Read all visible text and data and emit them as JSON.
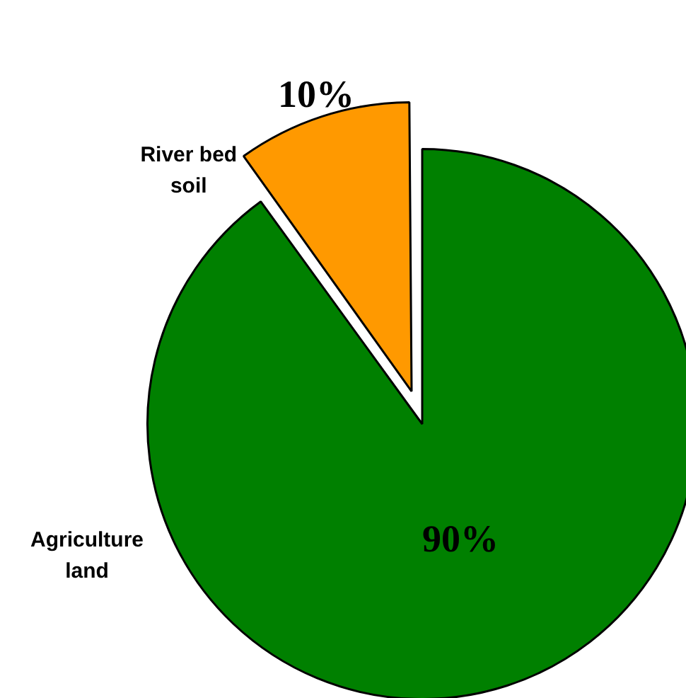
{
  "chart_data": {
    "type": "pie",
    "categories": [
      "Agriculture land",
      "River bed soil"
    ],
    "values": [
      90,
      10
    ],
    "colors": [
      "#008000",
      "#ff9900"
    ],
    "value_labels": [
      "90%",
      "10%"
    ],
    "legend": false
  }
}
